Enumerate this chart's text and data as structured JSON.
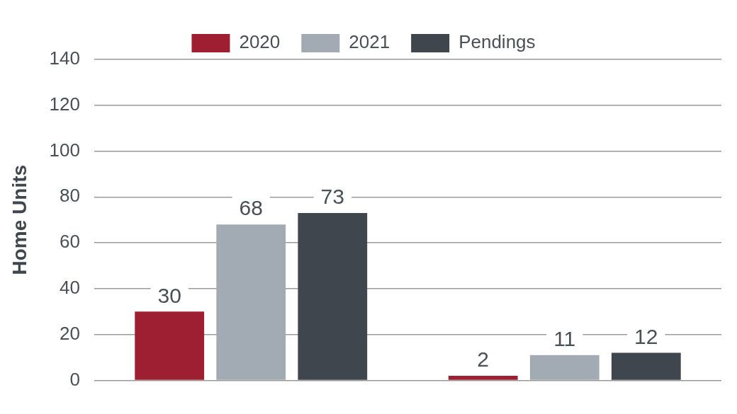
{
  "chart_data": {
    "type": "bar",
    "ylabel": "Home Units",
    "categories": [
      null,
      null
    ],
    "series": [
      {
        "name": "2020",
        "color": "#9e1f32",
        "values": [
          30,
          2
        ]
      },
      {
        "name": "2021",
        "color": "#a2abb3",
        "values": [
          68,
          11
        ]
      },
      {
        "name": "Pendings",
        "color": "#3f464d",
        "values": [
          73,
          12
        ]
      }
    ],
    "ylim": [
      0,
      140
    ],
    "yticks": [
      0,
      20,
      40,
      60,
      80,
      100,
      120,
      140
    ],
    "grid": "y",
    "legend": "top",
    "data_labels": true
  }
}
